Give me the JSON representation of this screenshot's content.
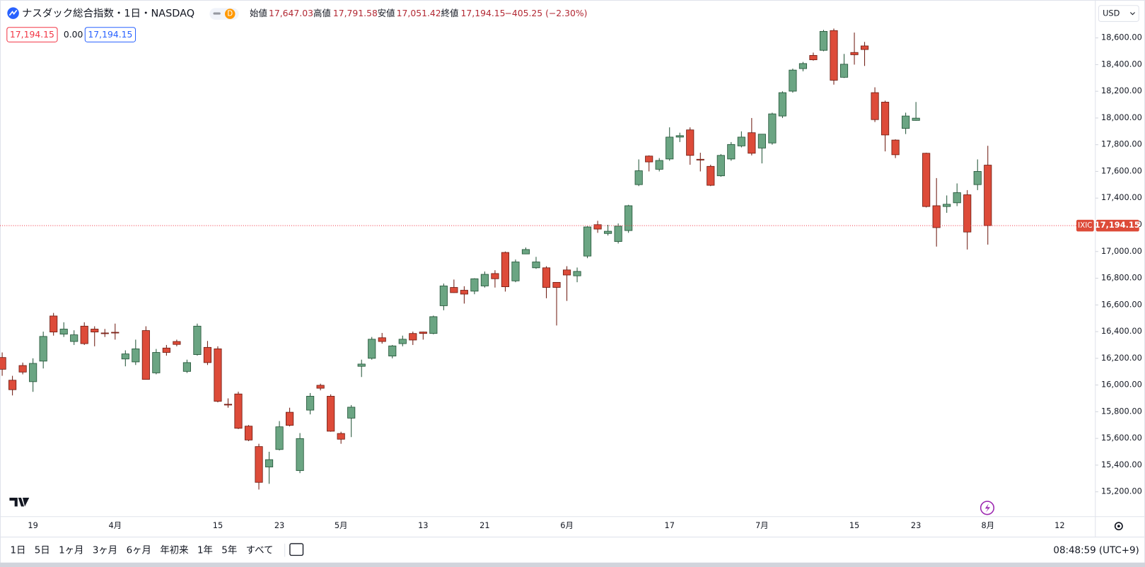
{
  "header": {
    "title": "ナスダック総合指数・1日・NASDAQ",
    "interval_badge": "D",
    "ohlc": [
      {
        "label": "始値",
        "value": "17,647.03"
      },
      {
        "label": "高値",
        "value": "17,791.58"
      },
      {
        "label": "安値",
        "value": "17,051.42"
      },
      {
        "label": "終値",
        "value": "17,194.15"
      }
    ],
    "change": "−405.25 (−2.30%)",
    "indicators": [
      "17,194.15",
      "0.00",
      "17,194.15"
    ]
  },
  "currency": "USD",
  "price_tag": {
    "symbol": "IXIC",
    "price": "17,194.15"
  },
  "toolbar": {
    "ranges": [
      "1日",
      "5日",
      "1ヶ月",
      "3ヶ月",
      "6ヶ月",
      "年初来",
      "1年",
      "5年",
      "すべて"
    ],
    "time": "08:48:59 (UTC+9)"
  },
  "chart_data": {
    "type": "candlestick",
    "up_color": "#6ba583",
    "down_color": "#dd4b39",
    "grid": false,
    "categories": [
      null,
      null,
      null,
      "19",
      null,
      null,
      null,
      null,
      null,
      null,
      null,
      "4月",
      null,
      null,
      null,
      null,
      null,
      null,
      null,
      null,
      null,
      "15",
      null,
      null,
      null,
      null,
      null,
      "23",
      null,
      null,
      null,
      null,
      null,
      "5月",
      null,
      null,
      null,
      null,
      null,
      null,
      null,
      "13",
      null,
      null,
      null,
      null,
      null,
      "21",
      null,
      null,
      null,
      null,
      null,
      null,
      null,
      "6月",
      null,
      null,
      null,
      null,
      null,
      null,
      null,
      null,
      null,
      "17",
      null,
      null,
      null,
      null,
      null,
      null,
      null,
      null,
      "7月",
      null,
      null,
      null,
      null,
      null,
      null,
      null,
      null,
      "15",
      null,
      null,
      null,
      null,
      null,
      "23",
      null,
      null,
      null,
      null,
      null,
      null,
      "8月",
      null,
      null,
      null,
      null,
      null,
      null,
      "12",
      null,
      null
    ],
    "open": [
      16206,
      16036,
      16146,
      16025,
      16179,
      16517,
      16381,
      16326,
      16441,
      16419,
      16390,
      16395,
      16195,
      16173,
      16408,
      16091,
      16277,
      16326,
      16102,
      16228,
      16282,
      16271,
      15856,
      15933,
      15692,
      15539,
      15386,
      15517,
      15796,
      15359,
      15812,
      15998,
      15916,
      15637,
      15752,
      16140,
      16200,
      16354,
      16217,
      16310,
      16386,
      16397,
      16386,
      16594,
      16731,
      16710,
      16703,
      16742,
      16835,
      16993,
      16780,
      16982,
      16878,
      16878,
      16769,
      16862,
      16818,
      16966,
      17201,
      17135,
      17075,
      17157,
      17501,
      17715,
      17616,
      17693,
      17857,
      17911,
      17691,
      17638,
      17567,
      17693,
      17791,
      17890,
      17775,
      17813,
      18015,
      18201,
      18370,
      18469,
      18507,
      18655,
      18305,
      18491,
      18540,
      18190,
      18119,
      17835,
      17922,
      17982,
      17736,
      17343,
      17337,
      17365,
      17425,
      17501,
      17647.03,
      null,
      null,
      null,
      null,
      null,
      null,
      null,
      null,
      null
    ],
    "high": [
      16244,
      16069,
      16168,
      16200,
      16400,
      16540,
      16470,
      16410,
      16470,
      16440,
      16420,
      16460,
      16260,
      16340,
      16440,
      16270,
      16300,
      16340,
      16190,
      16460,
      16330,
      16290,
      15900,
      15950,
      15700,
      15560,
      15500,
      15730,
      15830,
      15640,
      15940,
      16010,
      15930,
      15650,
      15850,
      16190,
      16360,
      16390,
      16300,
      16370,
      16400,
      16400,
      16520,
      16760,
      16790,
      16740,
      16800,
      16850,
      16860,
      17000,
      16940,
      17030,
      16960,
      16890,
      16770,
      16890,
      16880,
      17190,
      17230,
      17200,
      17210,
      17350,
      17690,
      17720,
      17700,
      17930,
      17890,
      17930,
      17740,
      17650,
      17730,
      17820,
      17900,
      18000,
      17880,
      18040,
      18200,
      18370,
      18420,
      18490,
      18660,
      18670,
      18480,
      18640,
      18570,
      18230,
      18130,
      17840,
      18040,
      18120,
      17740,
      17550,
      17420,
      17510,
      17460,
      17690,
      17791.58,
      null,
      null,
      null,
      null,
      null,
      null,
      null,
      null,
      null
    ],
    "low": [
      16069,
      15922,
      16080,
      15949,
      16124,
      16370,
      16360,
      16300,
      16300,
      16290,
      16360,
      16340,
      16140,
      16150,
      16040,
      16080,
      16220,
      16290,
      16090,
      16220,
      16150,
      15870,
      15830,
      15670,
      15580,
      15217,
      15260,
      15510,
      15690,
      15340,
      15780,
      15960,
      15650,
      15560,
      15610,
      16060,
      16190,
      16310,
      16200,
      16290,
      16300,
      16340,
      16380,
      16560,
      16690,
      16610,
      16680,
      16730,
      16730,
      16700,
      16770,
      16980,
      16870,
      16650,
      16446,
      16630,
      16770,
      16950,
      17140,
      17120,
      17060,
      17140,
      17490,
      17600,
      17600,
      17680,
      17820,
      17650,
      17600,
      17490,
      17560,
      17680,
      17780,
      17720,
      17660,
      17800,
      18000,
      18190,
      18350,
      18430,
      18500,
      18250,
      18300,
      18400,
      18390,
      17970,
      17750,
      17700,
      17880,
      17980,
      17330,
      17037,
      17290,
      17340,
      17015,
      17460,
      17051.42,
      null,
      null,
      null,
      null,
      null,
      null,
      null,
      null,
      null
    ],
    "close": [
      16118,
      15965,
      16097,
      16162,
      16364,
      16397,
      16419,
      16376,
      16310,
      16397,
      16385,
      16390,
      16233,
      16271,
      16042,
      16244,
      16244,
      16304,
      16168,
      16441,
      16168,
      15878,
      15850,
      15676,
      15588,
      15271,
      15441,
      15687,
      15698,
      15599,
      15916,
      15976,
      15654,
      15594,
      15834,
      16157,
      16343,
      16326,
      16293,
      16343,
      16337,
      16386,
      16512,
      16742,
      16692,
      16681,
      16796,
      16829,
      16796,
      16736,
      16922,
      17015,
      16922,
      16731,
      16731,
      16824,
      16851,
      17184,
      17168,
      17152,
      17190,
      17343,
      17605,
      17671,
      17682,
      17857,
      17868,
      17720,
      17685,
      17496,
      17720,
      17802,
      17857,
      17736,
      17879,
      18031,
      18190,
      18359,
      18408,
      18436,
      18649,
      18283,
      18403,
      18474,
      18513,
      17988,
      17873,
      17725,
      18015,
      17999,
      17337,
      17179,
      17354,
      17441,
      17146,
      17600,
      17194.15,
      null,
      null,
      null,
      null,
      null,
      null,
      null,
      null,
      null
    ],
    "ylim": [
      15014,
      18884
    ],
    "yticks": [
      {
        "value": 15200,
        "label": "15,200.00"
      },
      {
        "value": 15400,
        "label": "15,400.00"
      },
      {
        "value": 15600,
        "label": "15,600.00"
      },
      {
        "value": 15800,
        "label": "15,800.00"
      },
      {
        "value": 16000,
        "label": "16,000.00"
      },
      {
        "value": 16200,
        "label": "16,200.00"
      },
      {
        "value": 16400,
        "label": "16,400.00"
      },
      {
        "value": 16600,
        "label": "16,600.00"
      },
      {
        "value": 16800,
        "label": "16,800.00"
      },
      {
        "value": 17000,
        "label": "17,000.00"
      },
      {
        "value": 17200,
        "label": "17,200.00"
      },
      {
        "value": 17400,
        "label": "17,400.00"
      },
      {
        "value": 17600,
        "label": "17,600.00"
      },
      {
        "value": 17800,
        "label": "17,800.00"
      },
      {
        "value": 18000,
        "label": "18,000.00"
      },
      {
        "value": 18200,
        "label": "18,200.00"
      },
      {
        "value": 18400,
        "label": "18,400.00"
      },
      {
        "value": 18600,
        "label": "18,600.00"
      }
    ]
  }
}
